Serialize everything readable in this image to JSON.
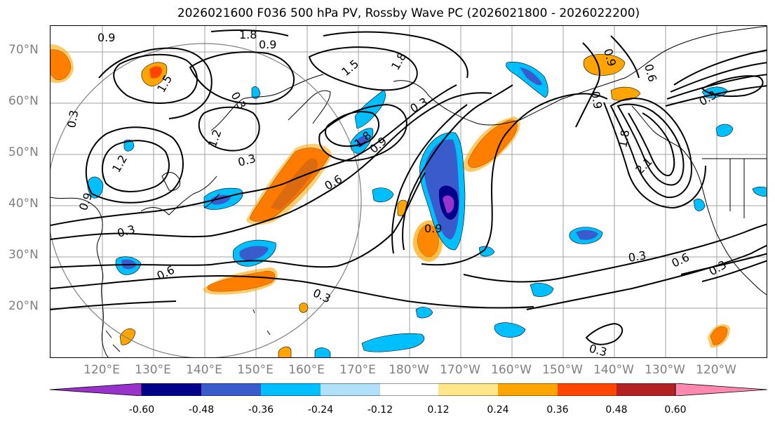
{
  "title": "2026021600 F036 500 hPa PV, Rossby Wave PC (2026021800 - 2026022200)",
  "lat_labels": [
    "70°N",
    "60°N",
    "50°N",
    "40°N",
    "30°N",
    "20°N"
  ],
  "lon_labels": [
    "120°E",
    "130°E",
    "140°E",
    "150°E",
    "160°E",
    "170°E",
    "180°W",
    "170°W",
    "160°W",
    "150°W",
    "140°W",
    "130°W",
    "120°W"
  ],
  "contour_labels": [
    "0.9",
    "1.8",
    "0.9",
    "1.5",
    "0.3",
    "1.2",
    "0.3",
    "1.2",
    "0.9",
    "0.3",
    "1.5",
    "1.8",
    "0.3",
    "1.8",
    "0.9",
    "0.6",
    "0.3",
    "0.6",
    "0.9",
    "0.3",
    "0.3",
    "0.3",
    "0.6",
    "0.3",
    "1.8",
    "2.1",
    "0.9",
    "0.6",
    "0.9",
    "0.3"
  ],
  "colorbar": {
    "ticks": [
      "-0.60",
      "-0.48",
      "-0.36",
      "-0.24",
      "-0.12",
      "0.12",
      "0.24",
      "0.36",
      "0.48",
      "0.60"
    ],
    "colors": [
      "#9932cc",
      "#00008b",
      "#3a5bcc",
      "#00bfff",
      "#b0e0fa",
      "#ffffff",
      "#ffe68a",
      "#ffa500",
      "#ff4500",
      "#b22222",
      "#ff88b0"
    ],
    "extend": "both"
  },
  "map_colors": {
    "contour": "#000000",
    "grid": "#a0a0a0",
    "coast": "#000000",
    "ring": "#808080"
  }
}
